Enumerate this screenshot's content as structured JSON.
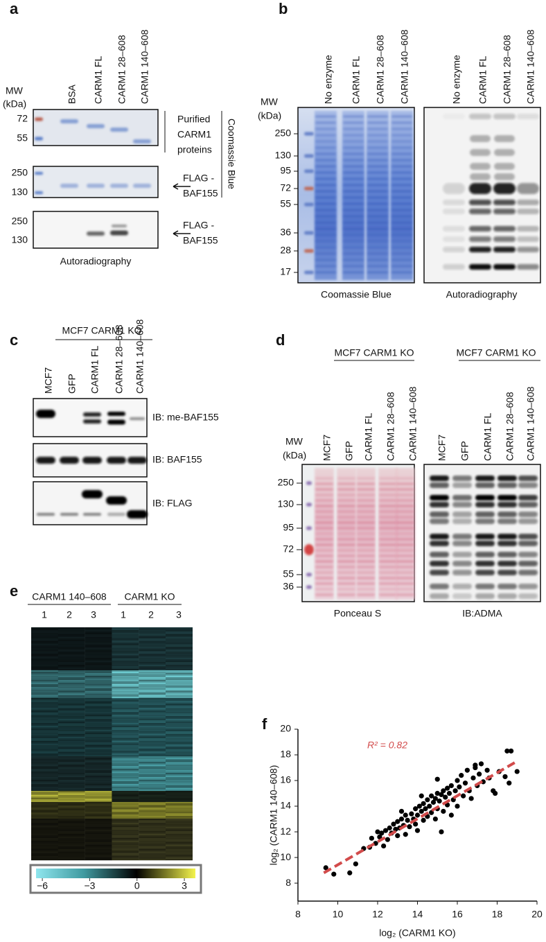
{
  "a": {
    "label": "a",
    "mw": [
      "MW",
      "(kDa)"
    ],
    "lanes": [
      "BSA",
      "CARM1 FL",
      "CARM1 28–608",
      "CARM1 140–608"
    ],
    "gel1_markers": [
      72,
      55
    ],
    "gel1_note": [
      "Purified",
      "CARM1",
      "proteins"
    ],
    "gel2_markers": [
      250,
      130
    ],
    "target": [
      "FLAG -",
      "BAF155"
    ],
    "stain": "Coomassie Blue",
    "gel3_markers": [
      250,
      130
    ],
    "caption": "Autoradiography"
  },
  "b": {
    "label": "b",
    "mw": [
      "MW",
      "(kDa)"
    ],
    "lanes": [
      "No enzyme",
      "CARM1 FL",
      "CARM1 28–608",
      "CARM1 140–608"
    ],
    "markers": [
      250,
      130,
      95,
      72,
      55,
      36,
      28,
      17
    ],
    "captions": [
      "Coomassie Blue",
      "Autoradiography"
    ]
  },
  "c": {
    "label": "c",
    "group": "MCF7 CARM1 KO",
    "lanes": [
      "MCF7",
      "GFP",
      "CARM1 FL",
      "CARM1 28–608",
      "CARM1 140–608"
    ],
    "blots": [
      "IB: me-BAF155",
      "IB: BAF155",
      "IB: FLAG"
    ]
  },
  "d": {
    "label": "d",
    "groups": [
      "MCF7 CARM1 KO",
      "MCF7 CARM1 KO"
    ],
    "mw": [
      "MW",
      "(kDa)"
    ],
    "lanes": [
      "MCF7",
      "GFP",
      "CARM1 FL",
      "CARM1 28–608",
      "CARM1 140–608"
    ],
    "markers": [
      250,
      130,
      95,
      72,
      55,
      36
    ],
    "captions": [
      "Ponceau S",
      "IB:ADMA"
    ]
  },
  "e": {
    "label": "e",
    "groups": [
      "CARM1 140–608",
      "CARM1 KO"
    ],
    "replicates": [
      1,
      2,
      3,
      1,
      2,
      3
    ],
    "colorbar": {
      "lim": [
        -6.4,
        3.7
      ],
      "ticks": [
        {
          "value": -6,
          "label": "−6"
        },
        {
          "value": -3,
          "label": "−3"
        },
        0,
        3
      ]
    }
  },
  "f": {
    "label": "f"
  },
  "chart_data": {
    "type": "scatter",
    "x_label": "log₂ (CARM1 KO)",
    "y_label": "log₂ (CARM1 140–608)",
    "annotation": "R² = 0.82",
    "color": "#000000",
    "trend": {
      "x": [
        9.3,
        19
      ],
      "y": [
        8.8,
        17.5
      ],
      "color": "#d24b4b"
    },
    "xlim": [
      8,
      20
    ],
    "ylim": [
      6.6,
      20
    ],
    "xticks": [
      8,
      10,
      12,
      14,
      16,
      18,
      20
    ],
    "yticks": [
      8,
      10,
      12,
      14,
      16,
      18,
      20
    ],
    "x": [
      9.4,
      9.8,
      10.6,
      10.9,
      11.3,
      11.6,
      11.7,
      11.9,
      12.0,
      12.1,
      12.2,
      12.3,
      12.4,
      12.5,
      12.6,
      12.7,
      12.8,
      12.9,
      13.0,
      13.0,
      13.1,
      13.2,
      13.3,
      13.4,
      13.4,
      13.5,
      13.6,
      13.7,
      13.8,
      13.9,
      13.9,
      14.0,
      14.0,
      14.1,
      14.2,
      14.3,
      14.3,
      14.4,
      14.5,
      14.5,
      14.6,
      14.7,
      14.7,
      14.8,
      14.9,
      14.9,
      15.0,
      15.0,
      15.1,
      15.2,
      15.2,
      15.3,
      15.3,
      15.4,
      15.5,
      15.5,
      15.6,
      15.7,
      15.7,
      15.8,
      15.9,
      16.0,
      16.0,
      16.1,
      16.2,
      16.3,
      16.4,
      16.5,
      16.6,
      16.7,
      16.8,
      16.9,
      17.0,
      17.1,
      17.2,
      17.3,
      17.5,
      17.6,
      17.8,
      17.9,
      18.1,
      18.4,
      18.5,
      18.7,
      18.6,
      19.0,
      16.9,
      15.0,
      14.2,
      13.2
    ],
    "y": [
      9.2,
      8.7,
      8.8,
      9.5,
      10.7,
      10.8,
      11.5,
      11.1,
      12.0,
      11.6,
      11.9,
      10.9,
      12.1,
      11.4,
      12.3,
      11.9,
      12.6,
      12.2,
      11.7,
      12.8,
      12.3,
      13.0,
      12.5,
      11.8,
      13.3,
      12.9,
      12.4,
      13.4,
      13.0,
      12.6,
      13.8,
      13.3,
      12.1,
      14.0,
      13.6,
      12.9,
      14.2,
      13.8,
      13.2,
      14.5,
      14.0,
      13.5,
      14.8,
      14.3,
      13.0,
      14.6,
      15.0,
      13.8,
      14.4,
      12.0,
      14.9,
      15.2,
      13.6,
      14.7,
      15.4,
      14.1,
      15.0,
      13.3,
      15.6,
      14.5,
      15.2,
      16.0,
      14.0,
      15.5,
      16.4,
      14.8,
      15.8,
      16.8,
      15.2,
      14.6,
      16.2,
      17.0,
      15.6,
      16.5,
      17.3,
      15.9,
      16.8,
      16.2,
      15.2,
      15.0,
      16.7,
      16.3,
      18.3,
      18.3,
      15.8,
      16.7,
      17.2,
      16.1,
      14.8,
      13.6
    ]
  }
}
